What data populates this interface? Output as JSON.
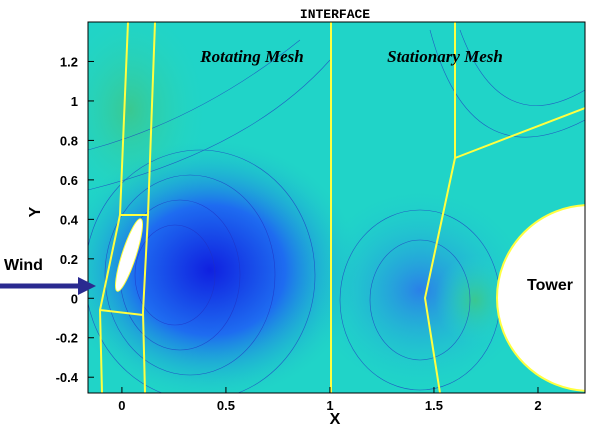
{
  "chart_data": {
    "type": "contour",
    "title": "INTERFACE",
    "xlabel": "X",
    "ylabel": "Y",
    "annotations": [
      "Rotating Mesh",
      "Stationary Mesh",
      "Wind",
      "Tower"
    ],
    "xlim": [
      -0.163,
      2.226
    ],
    "ylim": [
      -0.48,
      1.4
    ],
    "xticks": [
      0,
      0.5,
      1,
      1.5,
      2
    ],
    "yticks": [
      -0.4,
      -0.2,
      0,
      0.2,
      0.4,
      0.6,
      0.8,
      1,
      1.2
    ]
  }
}
